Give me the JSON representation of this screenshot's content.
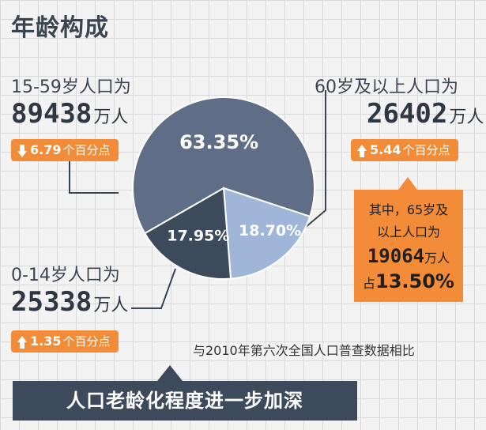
{
  "title": "年龄构成",
  "groups": {
    "working": {
      "label": "15-59岁人口为",
      "value": "89438",
      "unit": "万人",
      "change_dir": "down",
      "change_value": "6.79",
      "change_unit": "个百分点"
    },
    "elderly": {
      "label": "60岁及以上人口为",
      "value": "26402",
      "unit": "万人",
      "change_dir": "up",
      "change_value": "5.44",
      "change_unit": "个百分点"
    },
    "children": {
      "label": "0-14岁人口为",
      "value": "25338",
      "unit": "万人",
      "change_dir": "up",
      "change_value": "1.35",
      "change_unit": "个百分点"
    }
  },
  "callout": {
    "line1": "其中，65岁及",
    "line2": "以上人口为",
    "value": "19064",
    "unit": "万人",
    "share_prefix": "占",
    "share": "13.50%"
  },
  "comparison_note": "与2010年第六次全国人口普查数据相比",
  "banner": "人口老龄化程度进一步加深",
  "colors": {
    "background": "#f3f3f3",
    "working_slice": "#5f6e86",
    "children_slice": "#3d4a5c",
    "elderly_slice": "#9fb6d8",
    "accent_orange": "#f28c38",
    "banner": "#3d4a5c"
  },
  "chart_data": {
    "type": "pie",
    "slices": [
      {
        "label": "15-59岁",
        "value": 63.35,
        "display": "63.35%",
        "color": "#5f6e86"
      },
      {
        "label": "60岁及以上",
        "value": 18.7,
        "display": "18.70%",
        "color": "#9fb6d8"
      },
      {
        "label": "0-14岁",
        "value": 17.95,
        "display": "17.95%",
        "color": "#3d4a5c"
      }
    ]
  }
}
